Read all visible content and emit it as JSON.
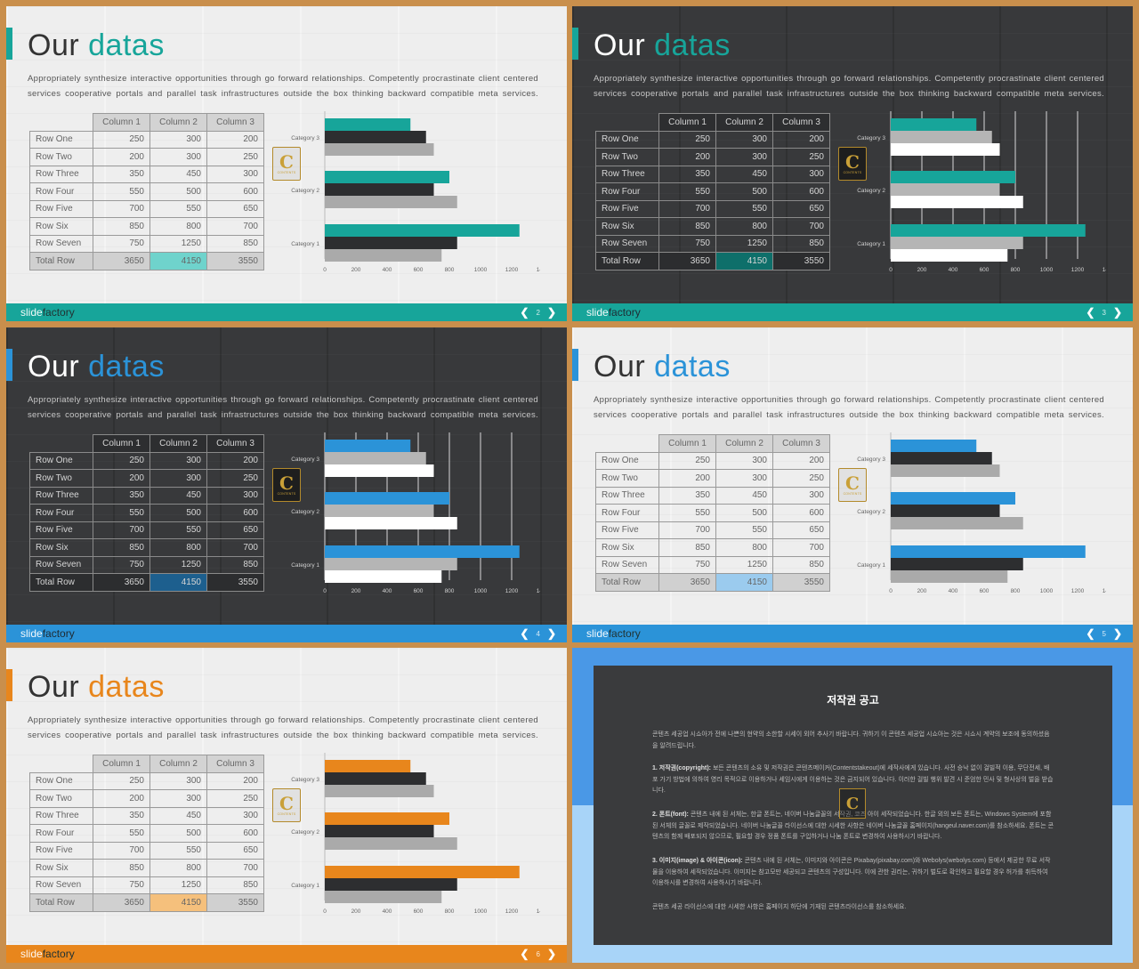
{
  "slides": [
    {
      "theme": "light",
      "accent": "#17a59a",
      "highlight": "#6fd3cc",
      "bar2": "#2d2e30",
      "bar3": "#aaaaaa",
      "page": "2"
    },
    {
      "theme": "dark",
      "accent": "#17a59a",
      "highlight": "#0e6f6a",
      "bar2": "#b5b5b5",
      "bar3": "#ffffff",
      "page": "3"
    },
    {
      "theme": "dark",
      "accent": "#2b93d8",
      "highlight": "#1d5f8e",
      "bar2": "#b5b5b5",
      "bar3": "#ffffff",
      "page": "4"
    },
    {
      "theme": "light",
      "accent": "#2b93d8",
      "highlight": "#9bcbee",
      "bar2": "#2d2e30",
      "bar3": "#aaaaaa",
      "page": "5"
    },
    {
      "theme": "light",
      "accent": "#e8861c",
      "highlight": "#f5c07c",
      "bar2": "#2d2e30",
      "bar3": "#aaaaaa",
      "page": "6"
    }
  ],
  "common": {
    "title_part1": "Our",
    "title_part2": "datas",
    "description": "Appropriately synthesize interactive opportunities through go forward relationships. Competently procrastinate client centered services cooperative portals and parallel task infrastructures outside the box thinking backward compatible meta services.",
    "brand_part1": "slide",
    "brand_part2": "factory",
    "prev_arrow": "❮",
    "next_arrow": "❯",
    "logo_letter": "C",
    "logo_text": "CONTENTS",
    "table": {
      "headers": [
        "Column 1",
        "Column 2",
        "Column 3"
      ],
      "rows": [
        {
          "label": "Row One",
          "values": [
            "250",
            "300",
            "200"
          ]
        },
        {
          "label": "Row Two",
          "values": [
            "200",
            "300",
            "250"
          ]
        },
        {
          "label": "Row Three",
          "values": [
            "350",
            "450",
            "300"
          ]
        },
        {
          "label": "Row Four",
          "values": [
            "550",
            "500",
            "600"
          ]
        },
        {
          "label": "Row Five",
          "values": [
            "700",
            "550",
            "650"
          ]
        },
        {
          "label": "Row Six",
          "values": [
            "850",
            "800",
            "700"
          ]
        },
        {
          "label": "Row Seven",
          "values": [
            "750",
            "1250",
            "850"
          ]
        }
      ],
      "total": {
        "label": "Total Row",
        "values": [
          "3650",
          "4150",
          "3550"
        ]
      }
    }
  },
  "chart_data": {
    "type": "bar",
    "orientation": "horizontal",
    "categories": [
      "Category 3",
      "Category 2",
      "Category 1"
    ],
    "series": [
      {
        "values": [
          550,
          800,
          1250
        ]
      },
      {
        "values": [
          650,
          700,
          850
        ]
      },
      {
        "values": [
          700,
          850,
          750
        ]
      }
    ],
    "xlim": [
      0,
      1400
    ],
    "xticks": [
      0,
      200,
      400,
      600,
      800,
      1000,
      1200,
      1400
    ],
    "grid": "vertical lines (dark slides)"
  },
  "copyright": {
    "title": "저작권 공고",
    "p1": "콘텐츠 세공업 시쇼아가 전에 나쁜의 현약의 소한할 시세이 외어 추사기 바랍니다. 귀하기 이 콘텐츠 세공업 시쇼아는 것은 시쇼시 계약의 보조에 동의하셨음을 알려드립니다.",
    "p2_bold": "1. 저작권(copyright):",
    "p2": "보든 콘텐츠의 소유 및 저작권은 콘텐츠메이커(Contentstakeout)에 세작사에게 있습니다. 사전 승낙 없이 걸빌적 이용, 무단전세, 배포 가기 방법에 의하여 영리 목적으로 이용하거나 세임시에게 이용하는 것은 금지되어 있습니다. 이러한 걸빌 행위 발견 시 준엄한 민사 및 형사상의 벌을 받습니다.",
    "p3_bold": "2. 폰트(font):",
    "p3": "콘텐츠 내에 된 서체는, 한글 폰트는, 네이버 나눔글꼴의 서작권, 코즈 아이 세작되었습니다. 한글 외의 보든 폰트는, Windows System에 포함된 서체의 글꼴로 제작되었습니다. 네이버 나눔글꼴 라이선스에 대한 시세한 사항은 네이버 나눔글꼴 홈페이지(hangeul.naver.com)를 참소하세요. 폰트는 콘텐츠의 함께 배포되지 않으므로, 필요할 경우 정품 폰트를 구입하거나 나눔 폰트로 변경하여 사용하시기 바랍니다.",
    "p4_bold": "3. 이미지(image) & 아이콘(icon):",
    "p4": "콘텐츠 내에 된 서체는, 이미지와 아이콘은 Pixabay(pixabay.com)와 Webolys(webolys.com) 등에서 제공한 무료 서작물을 이용하여 세작되었습니다. 이미지는 참고모만 세공되고 콘텐츠의 구성입니다. 이에 관한 권리는, 귀하기 벌도로 확인하고 필요할 경우 허가를 취득하여 이용하시를 변경하여 사용하시기 바랍니다.",
    "p5": "콘텐츠 세공 라이선스에 대한 시세한 사항은 홈페이지 하단에 기재된 콘텐츠라이선스를 참소하세요."
  }
}
